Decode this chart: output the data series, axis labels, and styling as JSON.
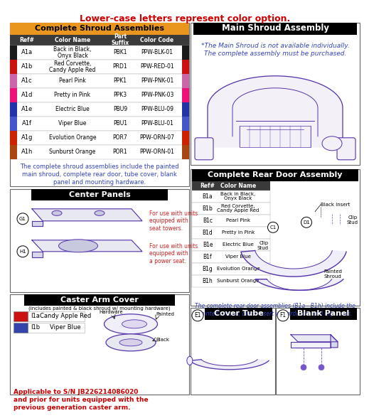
{
  "title": "Lower-case letters represent color option.",
  "title_color": "#cc0000",
  "bg_color": "#ffffff",
  "shroud_table": {
    "title": "Complete Shroud Assemblies",
    "title_bg": "#e8961e",
    "header_bg": "#3a3a3a",
    "rows": [
      {
        "ref": "A1a",
        "name": "Back in Black,\nOnyx Black",
        "suffix": "PBK1",
        "code": "PPW-BLK-01",
        "color": "#1a1a1a"
      },
      {
        "ref": "A1b",
        "name": "Red Corvette,\nCandy Apple Red",
        "suffix": "PRD1",
        "code": "PPW-RED-01",
        "color": "#cc1111"
      },
      {
        "ref": "A1c",
        "name": "Pearl Pink",
        "suffix": "PPK1",
        "code": "PPW-PNK-01",
        "color": "#cc66aa"
      },
      {
        "ref": "A1d",
        "name": "Pretty in Pink",
        "suffix": "PPK3",
        "code": "PPW-PNK-03",
        "color": "#ee1177"
      },
      {
        "ref": "A1e",
        "name": "Electric Blue",
        "suffix": "PBU9",
        "code": "PPW-BLU-09",
        "color": "#2233aa"
      },
      {
        "ref": "A1f",
        "name": "Viper Blue",
        "suffix": "PBU1",
        "code": "PPW-BLU-01",
        "color": "#4455cc"
      },
      {
        "ref": "A1g",
        "name": "Evolution Orange",
        "suffix": "POR7",
        "code": "PPW-ORN-07",
        "color": "#cc2200"
      },
      {
        "ref": "A1h",
        "name": "Sunburst Orange",
        "suffix": "POR1",
        "code": "PPW-ORN-01",
        "color": "#aa4411"
      }
    ],
    "footnote": "The complete shroud assemblies include the painted\nmain shroud, complete rear door, tube cover, blank\npanel and mounting hardware.",
    "footnote_color": "#3344bb"
  },
  "rear_door_table": {
    "title": "Complete Rear Door Assembly",
    "rows": [
      {
        "ref": "B1a",
        "name": "Back in Black,\nOnyx Black"
      },
      {
        "ref": "B1b",
        "name": "Red Corvette,\nCandy Apple Red"
      },
      {
        "ref": "B1c",
        "name": "Pearl Pink"
      },
      {
        "ref": "B1d",
        "name": "Pretty in Pink"
      },
      {
        "ref": "B1e",
        "name": "Electric Blue"
      },
      {
        "ref": "B1f",
        "name": "Viper Blue"
      },
      {
        "ref": "B1g",
        "name": "Evolution Orange"
      },
      {
        "ref": "B1h",
        "name": "Sunburst Orange"
      }
    ],
    "footnote": "The complete rear door assemblies (B1a - B1h) include the\npainted shroud, black insert w/ hardware, and clip studs.",
    "footnote_color": "#3344bb"
  },
  "main_shroud": {
    "title": "Main Shroud Assembly",
    "note": "*The Main Shroud is not available individually.\nThe complete assembly must be purchased.",
    "note_color": "#3344bb"
  },
  "center_panels": {
    "title": "Center Panels",
    "note1": "For use with units\nequipped with\nseat towers.",
    "note2": "For use with units\nequipped with\na power seat.",
    "note_color": "#cc2222"
  },
  "caster_arm": {
    "title": "Caster Arm Cover",
    "subtitle": "(includes painted & black shroud w/ mounting hardware)",
    "rows": [
      {
        "ref": "I1a",
        "name": "Candy Apple Red",
        "color": "#cc1111"
      },
      {
        "ref": "I1b",
        "name": "Viper Blue",
        "color": "#3344aa"
      }
    ],
    "footnote": "Applicable to S/N JB226214086020\nand prior for units equipped with the\nprevious generation caster arm.",
    "footnote_color": "#cc0000"
  },
  "cover_tube": {
    "title": "Cover Tube",
    "label": "E1"
  },
  "blank_panel": {
    "title": "Blank Panel",
    "label": "F1"
  },
  "purple": "#5533aa",
  "light_purple": "#7755cc"
}
